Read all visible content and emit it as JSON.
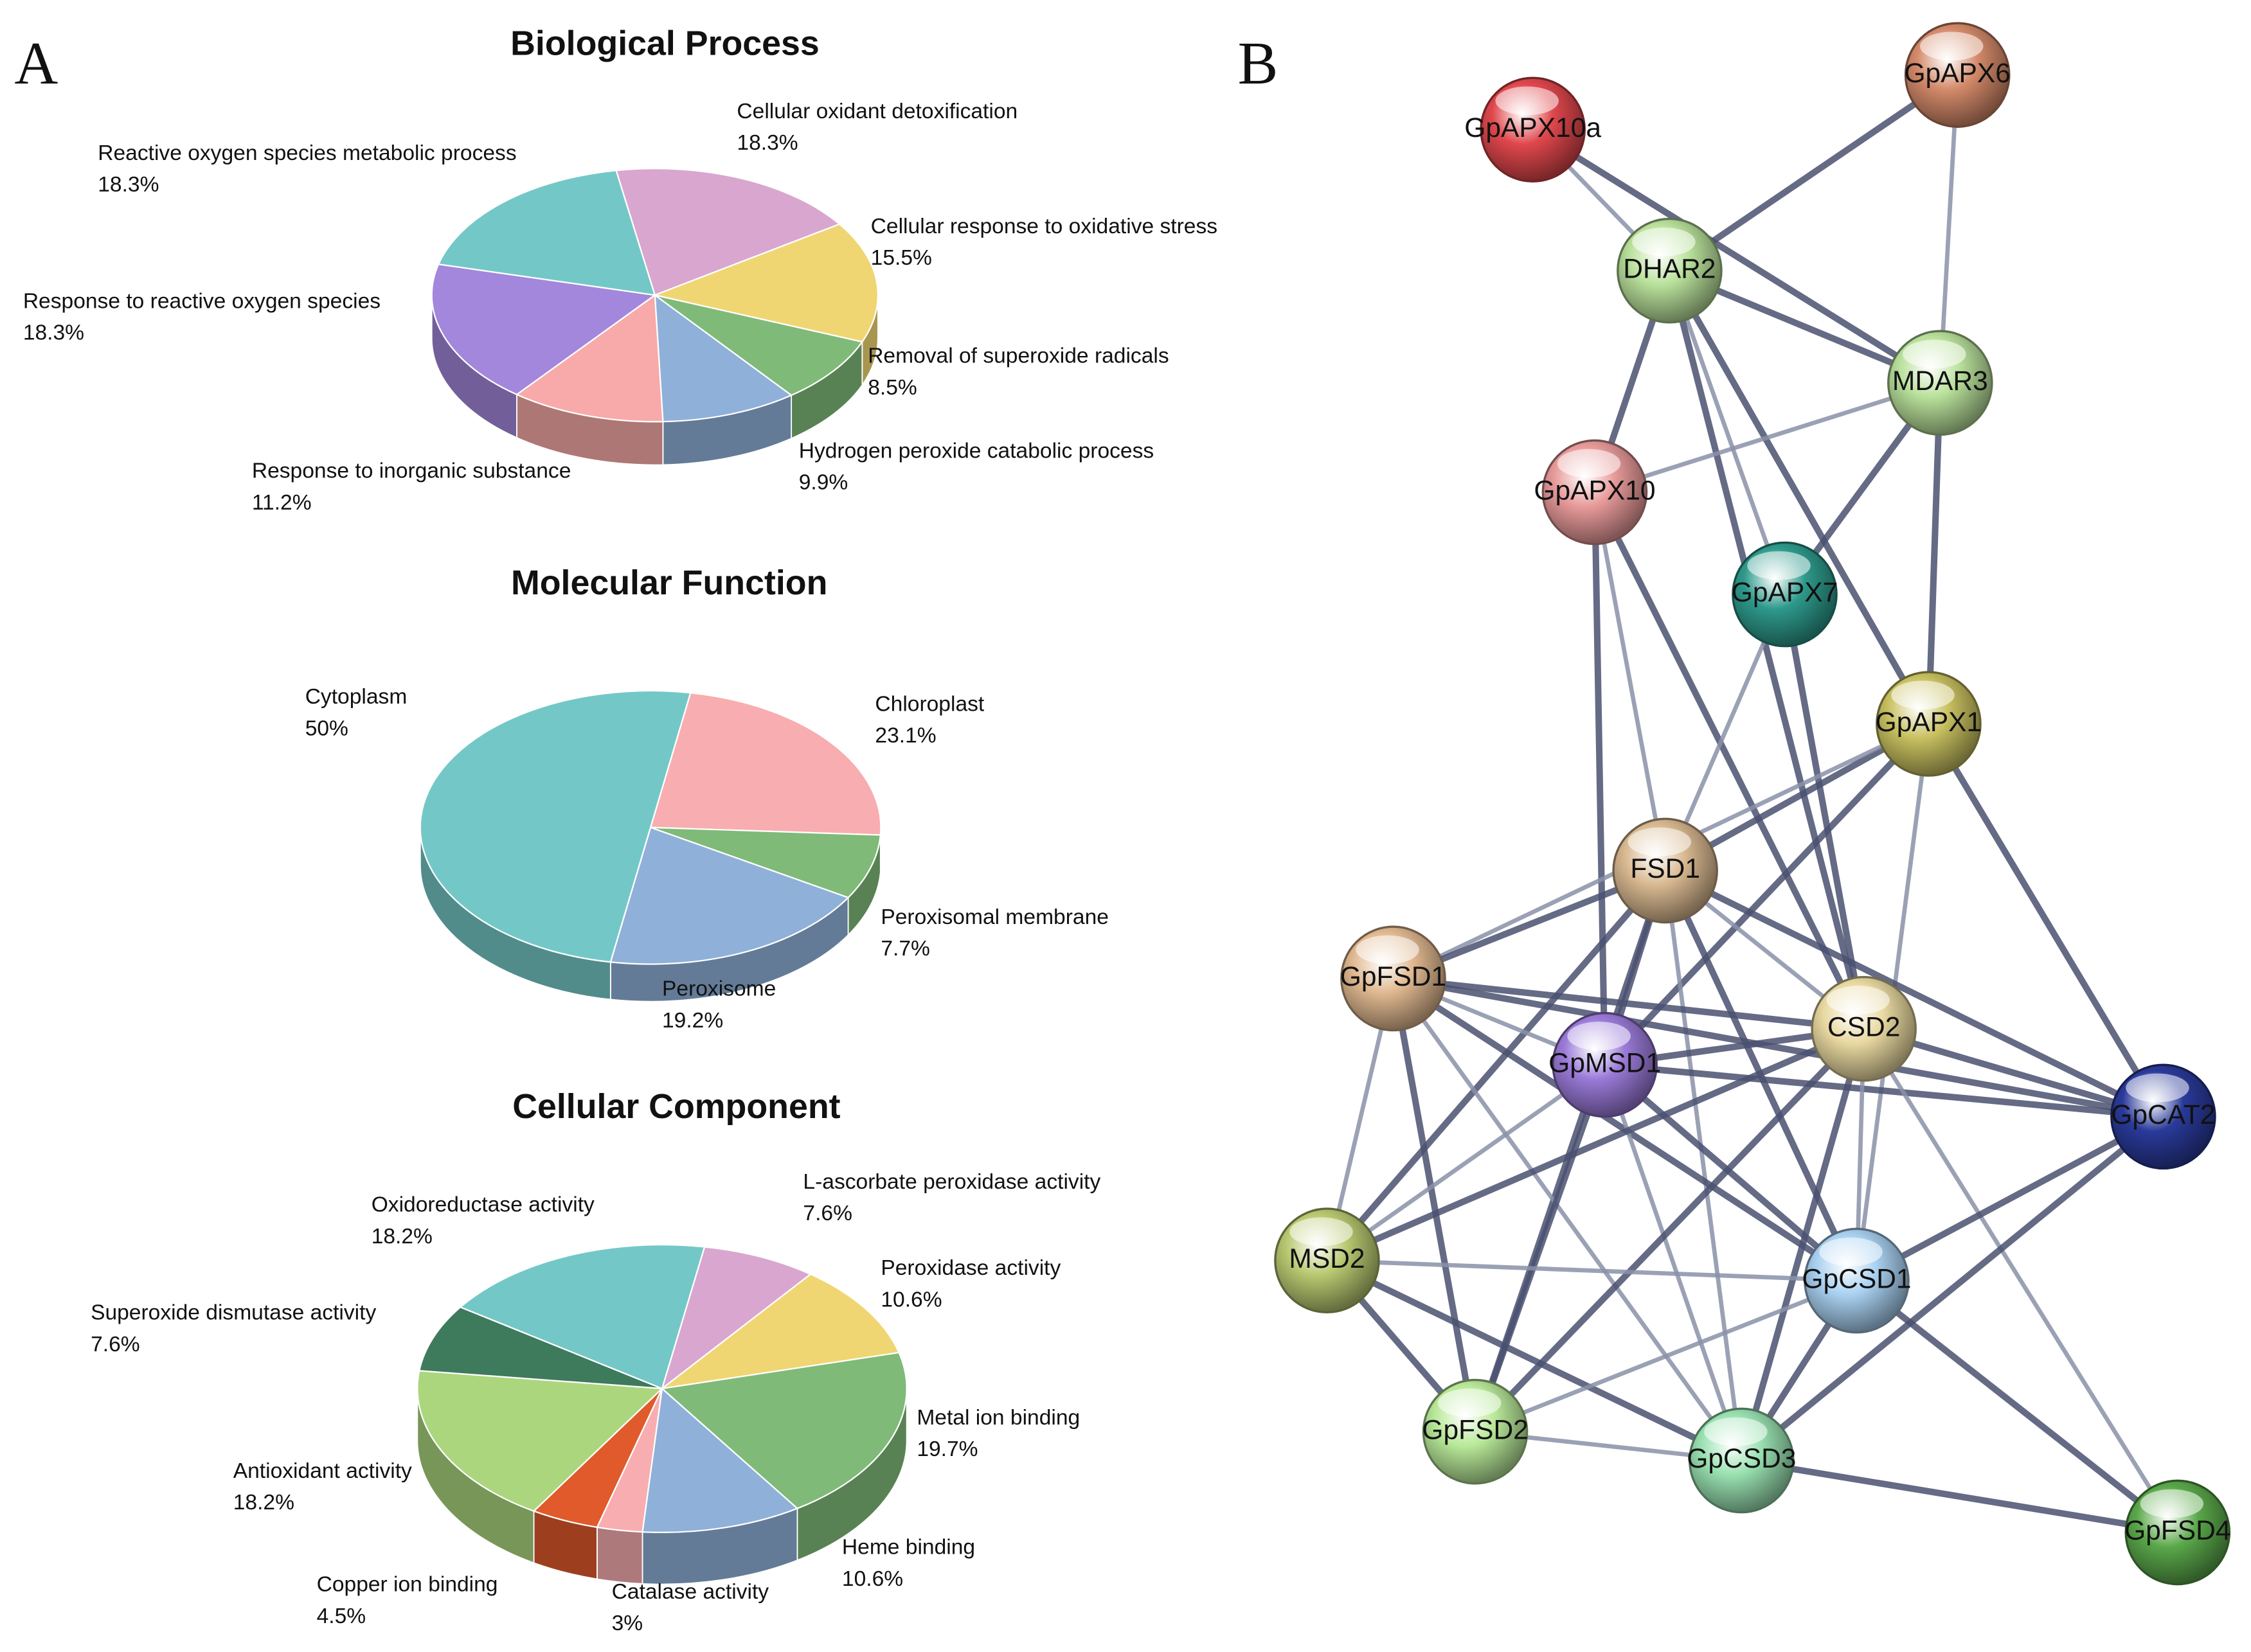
{
  "figure_labels": [
    "A",
    "B"
  ],
  "chart_data": [
    {
      "type": "pie",
      "title": "Biological Process",
      "categories": [
        "Cellular oxidant detoxification",
        "Cellular response to oxidative stress",
        "Removal of superoxide radicals",
        "Hydrogen peroxide catabolic process",
        "Response to inorganic substance",
        "Response to reactive oxygen species",
        "Reactive oxygen species metabolic process"
      ],
      "values": [
        18.3,
        15.5,
        8.5,
        9.9,
        11.2,
        18.3,
        18.3
      ],
      "value_labels": [
        "18.3%",
        "15.5%",
        "8.5%",
        "9.9%",
        "11.2%",
        "18.3%",
        "18.3%"
      ],
      "colors": [
        "#d9a6cf",
        "#f0d672",
        "#7fba78",
        "#8fb0d8",
        "#f7aaa9",
        "#a387dc",
        "#73c8c7"
      ]
    },
    {
      "type": "pie",
      "title": "Molecular Function",
      "categories": [
        "Chloroplast",
        "Peroxisomal membrane",
        "Peroxisome",
        "Cytoplasm"
      ],
      "values": [
        23.1,
        7.7,
        19.2,
        50
      ],
      "value_labels": [
        "23.1%",
        "7.7%",
        "19.2%",
        "50%"
      ],
      "colors": [
        "#f8adb0",
        "#7fba78",
        "#8fb0d8",
        "#73c8c7"
      ]
    },
    {
      "type": "pie",
      "title": "Cellular Component",
      "categories": [
        "L-ascorbate peroxidase activity",
        "Peroxidase activity",
        "Metal ion binding",
        "Heme binding",
        "Catalase activity",
        "Copper ion binding",
        "Antioxidant activity",
        "Superoxide dismutase activity",
        "Oxidoreductase activity"
      ],
      "values": [
        7.6,
        10.6,
        19.7,
        10.6,
        3,
        4.5,
        18.2,
        7.6,
        18.2
      ],
      "value_labels": [
        "7.6%",
        "10.6%",
        "19.7%",
        "10.6%",
        "3%",
        "4.5%",
        "18.2%",
        "7.6%",
        "18.2%"
      ],
      "colors": [
        "#d9a6cf",
        "#f0d672",
        "#7fba78",
        "#8fb0d8",
        "#f8adb0",
        "#e05a2b",
        "#acd67e",
        "#3e7a5c",
        "#73c8c7"
      ]
    }
  ],
  "network": {
    "nodes": [
      {
        "label": "GpAPX10a",
        "color": "#e0474c"
      },
      {
        "label": "GpAPX6",
        "color": "#d48a6a"
      },
      {
        "label": "DHAR2",
        "color": "#b8e09a"
      },
      {
        "label": "MDAR3",
        "color": "#b8e09a"
      },
      {
        "label": "GpAPX10",
        "color": "#e89a9a"
      },
      {
        "label": "GpAPX7",
        "color": "#2e9a8c"
      },
      {
        "label": "GpAPX1",
        "color": "#c8c060"
      },
      {
        "label": "FSD1",
        "color": "#d8b890"
      },
      {
        "label": "GpFSD1",
        "color": "#e0b890"
      },
      {
        "label": "CSD2",
        "color": "#e8d8a0"
      },
      {
        "label": "GpMSD1",
        "color": "#9a7ad8"
      },
      {
        "label": "GpCAT2",
        "color": "#2a3a9a"
      },
      {
        "label": "MSD2",
        "color": "#b8c870"
      },
      {
        "label": "GpCSD1",
        "color": "#a8d0f0"
      },
      {
        "label": "GpFSD2",
        "color": "#b8e898"
      },
      {
        "label": "GpCSD3",
        "color": "#98e0b0"
      },
      {
        "label": "GpFSD4",
        "color": "#5aa84a"
      }
    ],
    "edges": [
      [
        0,
        2
      ],
      [
        0,
        3
      ],
      [
        1,
        2
      ],
      [
        1,
        3
      ],
      [
        2,
        3
      ],
      [
        2,
        4
      ],
      [
        2,
        5
      ],
      [
        2,
        6
      ],
      [
        2,
        9
      ],
      [
        3,
        4
      ],
      [
        3,
        5
      ],
      [
        3,
        6
      ],
      [
        4,
        7
      ],
      [
        4,
        10
      ],
      [
        4,
        9
      ],
      [
        5,
        7
      ],
      [
        5,
        9
      ],
      [
        6,
        7
      ],
      [
        6,
        8
      ],
      [
        6,
        10
      ],
      [
        6,
        11
      ],
      [
        6,
        13
      ],
      [
        7,
        8
      ],
      [
        7,
        10
      ],
      [
        7,
        9
      ],
      [
        7,
        12
      ],
      [
        7,
        13
      ],
      [
        7,
        15
      ],
      [
        7,
        14
      ],
      [
        7,
        11
      ],
      [
        8,
        10
      ],
      [
        8,
        9
      ],
      [
        8,
        11
      ],
      [
        8,
        12
      ],
      [
        8,
        14
      ],
      [
        8,
        13
      ],
      [
        8,
        15
      ],
      [
        10,
        9
      ],
      [
        10,
        11
      ],
      [
        10,
        12
      ],
      [
        10,
        14
      ],
      [
        10,
        13
      ],
      [
        10,
        15
      ],
      [
        9,
        11
      ],
      [
        9,
        12
      ],
      [
        9,
        13
      ],
      [
        9,
        14
      ],
      [
        9,
        15
      ],
      [
        9,
        16
      ],
      [
        11,
        13
      ],
      [
        11,
        15
      ],
      [
        12,
        13
      ],
      [
        12,
        14
      ],
      [
        12,
        15
      ],
      [
        13,
        14
      ],
      [
        13,
        15
      ],
      [
        13,
        16
      ],
      [
        14,
        15
      ],
      [
        15,
        16
      ]
    ]
  }
}
